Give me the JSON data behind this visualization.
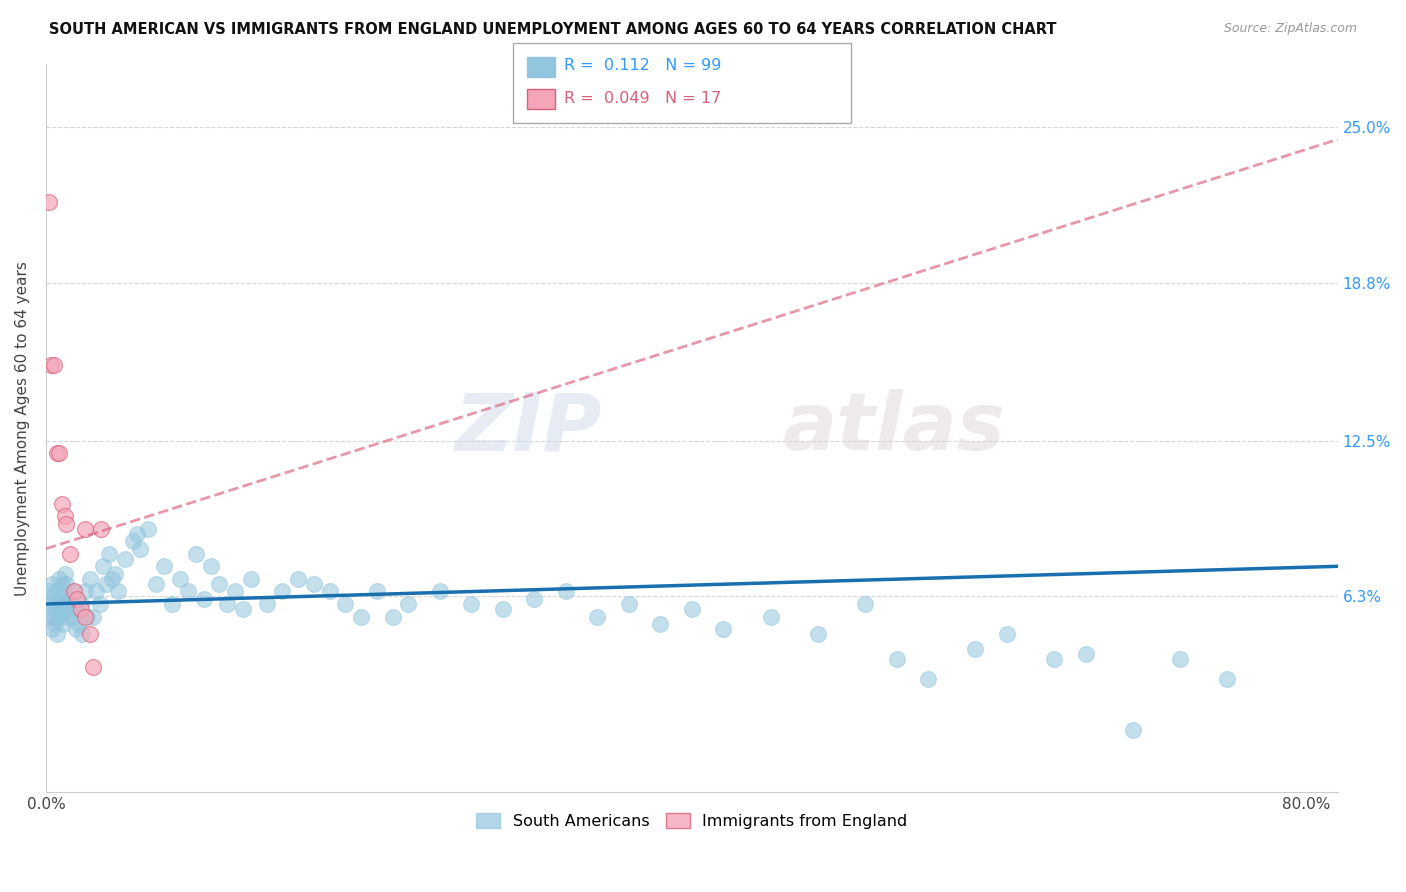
{
  "title": "SOUTH AMERICAN VS IMMIGRANTS FROM ENGLAND UNEMPLOYMENT AMONG AGES 60 TO 64 YEARS CORRELATION CHART",
  "source": "Source: ZipAtlas.com",
  "ylabel": "Unemployment Among Ages 60 to 64 years",
  "xlim": [
    0.0,
    0.82
  ],
  "ylim": [
    -0.015,
    0.275
  ],
  "ytick_vals": [
    0.063,
    0.125,
    0.188,
    0.25
  ],
  "ytick_labels": [
    "6.3%",
    "12.5%",
    "18.8%",
    "25.0%"
  ],
  "xtick_vals": [
    0.0,
    0.1,
    0.2,
    0.3,
    0.4,
    0.5,
    0.6,
    0.7,
    0.8
  ],
  "xtick_labels": [
    "0.0%",
    "",
    "",
    "",
    "",
    "",
    "",
    "",
    "80.0%"
  ],
  "blue_R": "0.112",
  "blue_N": "99",
  "pink_R": "0.049",
  "pink_N": "17",
  "blue_color": "#92c5de",
  "blue_edge_color": "#92c5de",
  "blue_line_color": "#1a6faf",
  "pink_color": "#f4a6b8",
  "pink_edge_color": "#d9607a",
  "pink_line_color": "#d9607a",
  "grid_color": "#cccccc",
  "watermark_zip": "ZIP",
  "watermark_atlas": "atlas",
  "legend_blue_label": "South Americans",
  "legend_pink_label": "Immigrants from England",
  "sa_x": [
    0.002,
    0.003,
    0.003,
    0.004,
    0.004,
    0.005,
    0.005,
    0.005,
    0.006,
    0.006,
    0.007,
    0.007,
    0.007,
    0.008,
    0.008,
    0.008,
    0.009,
    0.009,
    0.01,
    0.01,
    0.011,
    0.011,
    0.012,
    0.012,
    0.013,
    0.013,
    0.014,
    0.015,
    0.015,
    0.016,
    0.017,
    0.018,
    0.019,
    0.02,
    0.021,
    0.022,
    0.023,
    0.025,
    0.026,
    0.028,
    0.03,
    0.032,
    0.034,
    0.036,
    0.038,
    0.04,
    0.042,
    0.044,
    0.046,
    0.05,
    0.055,
    0.058,
    0.06,
    0.065,
    0.07,
    0.075,
    0.08,
    0.085,
    0.09,
    0.095,
    0.1,
    0.105,
    0.11,
    0.115,
    0.12,
    0.125,
    0.13,
    0.14,
    0.15,
    0.16,
    0.17,
    0.18,
    0.19,
    0.2,
    0.21,
    0.22,
    0.23,
    0.25,
    0.27,
    0.29,
    0.31,
    0.33,
    0.35,
    0.37,
    0.39,
    0.41,
    0.43,
    0.46,
    0.49,
    0.52,
    0.54,
    0.56,
    0.59,
    0.61,
    0.64,
    0.66,
    0.69,
    0.72,
    0.75
  ],
  "sa_y": [
    0.065,
    0.06,
    0.055,
    0.068,
    0.05,
    0.063,
    0.058,
    0.055,
    0.06,
    0.052,
    0.048,
    0.065,
    0.055,
    0.07,
    0.058,
    0.06,
    0.062,
    0.055,
    0.068,
    0.058,
    0.065,
    0.052,
    0.058,
    0.072,
    0.06,
    0.068,
    0.055,
    0.058,
    0.062,
    0.06,
    0.055,
    0.065,
    0.05,
    0.058,
    0.052,
    0.06,
    0.048,
    0.065,
    0.055,
    0.07,
    0.055,
    0.065,
    0.06,
    0.075,
    0.068,
    0.08,
    0.07,
    0.072,
    0.065,
    0.078,
    0.085,
    0.088,
    0.082,
    0.09,
    0.068,
    0.075,
    0.06,
    0.07,
    0.065,
    0.08,
    0.062,
    0.075,
    0.068,
    0.06,
    0.065,
    0.058,
    0.07,
    0.06,
    0.065,
    0.07,
    0.068,
    0.065,
    0.06,
    0.055,
    0.065,
    0.055,
    0.06,
    0.065,
    0.06,
    0.058,
    0.062,
    0.065,
    0.055,
    0.06,
    0.052,
    0.058,
    0.05,
    0.055,
    0.048,
    0.06,
    0.038,
    0.03,
    0.042,
    0.048,
    0.038,
    0.04,
    0.01,
    0.038,
    0.03
  ],
  "en_x": [
    0.002,
    0.003,
    0.005,
    0.007,
    0.008,
    0.01,
    0.012,
    0.013,
    0.015,
    0.018,
    0.02,
    0.022,
    0.025,
    0.025,
    0.028,
    0.03,
    0.035
  ],
  "en_y": [
    0.22,
    0.155,
    0.155,
    0.12,
    0.12,
    0.1,
    0.095,
    0.092,
    0.08,
    0.065,
    0.062,
    0.058,
    0.055,
    0.09,
    0.048,
    0.035,
    0.09
  ],
  "blue_trend_x": [
    0.0,
    0.82
  ],
  "blue_trend_y": [
    0.06,
    0.075
  ],
  "pink_trend_x": [
    0.0,
    0.82
  ],
  "pink_trend_y": [
    0.082,
    0.245
  ]
}
